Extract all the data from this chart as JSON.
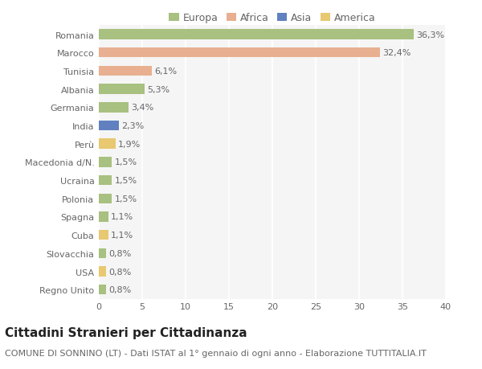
{
  "countries": [
    "Romania",
    "Marocco",
    "Tunisia",
    "Albania",
    "Germania",
    "India",
    "Perù",
    "Macedonia d/N.",
    "Ucraina",
    "Polonia",
    "Spagna",
    "Cuba",
    "Slovacchia",
    "USA",
    "Regno Unito"
  ],
  "values": [
    36.3,
    32.4,
    6.1,
    5.3,
    3.4,
    2.3,
    1.9,
    1.5,
    1.5,
    1.5,
    1.1,
    1.1,
    0.8,
    0.8,
    0.8
  ],
  "labels": [
    "36,3%",
    "32,4%",
    "6,1%",
    "5,3%",
    "3,4%",
    "2,3%",
    "1,9%",
    "1,5%",
    "1,5%",
    "1,5%",
    "1,1%",
    "1,1%",
    "0,8%",
    "0,8%",
    "0,8%"
  ],
  "continents": [
    "Europa",
    "Africa",
    "Africa",
    "Europa",
    "Europa",
    "Asia",
    "America",
    "Europa",
    "Europa",
    "Europa",
    "Europa",
    "America",
    "Europa",
    "America",
    "Europa"
  ],
  "colors": {
    "Europa": "#a8c080",
    "Africa": "#e8b090",
    "Asia": "#6080c0",
    "America": "#e8c870"
  },
  "legend_order": [
    "Europa",
    "Africa",
    "Asia",
    "America"
  ],
  "legend_colors": [
    "#a8c080",
    "#e8b090",
    "#6080c0",
    "#e8c870"
  ],
  "xlim": [
    0,
    40
  ],
  "xticks": [
    0,
    5,
    10,
    15,
    20,
    25,
    30,
    35,
    40
  ],
  "title": "Cittadini Stranieri per Cittadinanza",
  "subtitle": "COMUNE DI SONNINO (LT) - Dati ISTAT al 1° gennaio di ogni anno - Elaborazione TUTTITALIA.IT",
  "bg_color": "#ffffff",
  "plot_bg_color": "#f5f5f5",
  "grid_color": "#ffffff",
  "bar_height": 0.55,
  "title_fontsize": 11,
  "subtitle_fontsize": 8,
  "label_fontsize": 8,
  "tick_fontsize": 8,
  "legend_fontsize": 9
}
